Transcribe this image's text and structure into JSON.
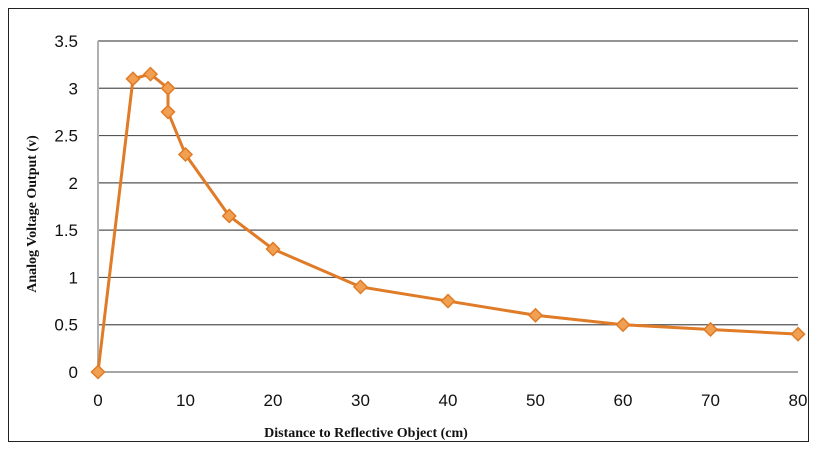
{
  "chart_data": {
    "type": "line",
    "xlabel": "Distance to Reflective Object (cm)",
    "ylabel": "Analog Voltage Output (v)",
    "xlim": [
      0,
      80
    ],
    "ylim": [
      0,
      3.5
    ],
    "x_ticks": [
      0,
      10,
      20,
      30,
      40,
      50,
      60,
      70,
      80
    ],
    "y_ticks": [
      0,
      0.5,
      1,
      1.5,
      2,
      2.5,
      3,
      3.5
    ],
    "x_tick_labels": [
      "0",
      "10",
      "20",
      "30",
      "40",
      "50",
      "60",
      "70",
      "80"
    ],
    "y_tick_labels": [
      "0",
      "0.5",
      "1",
      "1.5",
      "2",
      "2.5",
      "3",
      "3.5"
    ],
    "grid": "horizontal",
    "legend": "none",
    "series": [
      {
        "color": "#e07b27",
        "marker_color": "#f0a050",
        "marker": "diamond",
        "x": [
          0,
          4,
          6,
          8,
          8,
          10,
          15,
          20,
          30,
          40,
          50,
          60,
          70,
          80
        ],
        "y": [
          0,
          3.1,
          3.15,
          3.0,
          2.75,
          2.3,
          1.65,
          1.3,
          0.9,
          0.75,
          0.6,
          0.5,
          0.45,
          0.4
        ]
      }
    ]
  }
}
